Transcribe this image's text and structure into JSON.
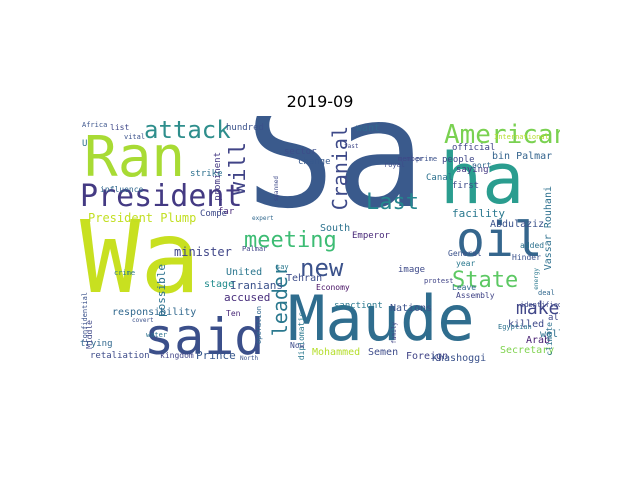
{
  "title": "2019-09",
  "words": [
    {
      "text": "Sâ",
      "color": "#3a5a8c"
    },
    {
      "text": "Wa",
      "color": "#c8e020"
    },
    {
      "text": "Ran",
      "color": "#a8db34"
    },
    {
      "text": "ha",
      "color": "#2a9d8f"
    },
    {
      "text": "Maude",
      "color": "#2f6d8e"
    },
    {
      "text": "said",
      "color": "#3b4f8a"
    },
    {
      "text": "oil",
      "color": "#35668d"
    },
    {
      "text": "President",
      "color": "#443a83"
    },
    {
      "text": "American",
      "color": "#7ad151"
    },
    {
      "text": "attack",
      "color": "#2e8e8c"
    },
    {
      "text": "meeting",
      "color": "#3dbc74"
    },
    {
      "text": "State",
      "color": "#5cc863"
    },
    {
      "text": "new",
      "color": "#3b528b"
    },
    {
      "text": "leader",
      "color": "#2a788e"
    },
    {
      "text": "will",
      "color": "#414487"
    },
    {
      "text": "Cranial",
      "color": "#3e4a89"
    },
    {
      "text": "Last",
      "color": "#24878e"
    },
    {
      "text": "make",
      "color": "#404688"
    },
    {
      "text": "President Plump",
      "color": "#c2df23"
    },
    {
      "text": "United",
      "color": "#2a768e"
    },
    {
      "text": "Iranians",
      "color": "#3b528b"
    },
    {
      "text": "minister",
      "color": "#404688"
    },
    {
      "text": "accused",
      "color": "#472d7b"
    },
    {
      "text": "possible",
      "color": "#2c718e"
    },
    {
      "text": "stage",
      "color": "#228c8d"
    },
    {
      "text": "responsibility",
      "color": "#31688e"
    },
    {
      "text": "Prince",
      "color": "#38588c"
    },
    {
      "text": "kingdom",
      "color": "#414487"
    },
    {
      "text": "retaliation",
      "color": "#3e4c8a"
    },
    {
      "text": "trying",
      "color": "#31688e"
    },
    {
      "text": "Middle",
      "color": "#3f4788"
    },
    {
      "text": "Tehran",
      "color": "#3d4d8a"
    },
    {
      "text": "Economy",
      "color": "#471164"
    },
    {
      "text": "South",
      "color": "#2c728e"
    },
    {
      "text": "Emperor",
      "color": "#482878"
    },
    {
      "text": "sanctiont",
      "color": "#2a788e"
    },
    {
      "text": "Nations",
      "color": "#3b528b"
    },
    {
      "text": "Foreign",
      "color": "#414487"
    },
    {
      "text": "Mohammed",
      "color": "#b5de2b"
    },
    {
      "text": "Semen",
      "color": "#3e4c8a"
    },
    {
      "text": "Khashoggi",
      "color": "#3b528b"
    },
    {
      "text": "Secretary",
      "color": "#7fd34e"
    },
    {
      "text": "killed",
      "color": "#3e4989"
    },
    {
      "text": "Arab",
      "color": "#482173"
    },
    {
      "text": "well",
      "color": "#2e6f8e"
    },
    {
      "text": "ally",
      "color": "#3f4889"
    },
    {
      "text": "climate",
      "color": "#2c718e"
    },
    {
      "text": "Vassar Rouhani",
      "color": "#2d708e"
    },
    {
      "text": "facility",
      "color": "#2a788e"
    },
    {
      "text": "Abdulaziz",
      "color": "#3b528b"
    },
    {
      "text": "bin Palmar",
      "color": "#33638d"
    },
    {
      "text": "want",
      "color": "#31688e"
    },
    {
      "text": "sector",
      "color": "#3d4e8a"
    },
    {
      "text": "change",
      "color": "#38598c"
    },
    {
      "text": "prominent",
      "color": "#443983"
    },
    {
      "text": "strike",
      "color": "#2d708e"
    },
    {
      "text": "influence",
      "color": "#31688e"
    },
    {
      "text": "far",
      "color": "#482878"
    },
    {
      "text": "Compe",
      "color": "#3e4a89"
    },
    {
      "text": "hundred",
      "color": "#3b528b"
    },
    {
      "text": "list",
      "color": "#3f4788"
    },
    {
      "text": "U",
      "color": "#2c718e"
    },
    {
      "text": "Africa",
      "color": "#3a538b"
    },
    {
      "text": "vital",
      "color": "#3b528b"
    },
    {
      "text": "official",
      "color": "#414487"
    },
    {
      "text": "people",
      "color": "#3f4788"
    },
    {
      "text": "saying",
      "color": "#443983"
    },
    {
      "text": "Canal",
      "color": "#2c718e"
    },
    {
      "text": "first",
      "color": "#3e4c8a"
    },
    {
      "text": "year",
      "color": "#2a788e"
    },
    {
      "text": "General",
      "color": "#3b528b"
    },
    {
      "text": "image",
      "color": "#3e4a89"
    },
    {
      "text": "Leave",
      "color": "#31688e"
    },
    {
      "text": "Assembly",
      "color": "#414487"
    },
    {
      "text": "added",
      "color": "#2c718e"
    },
    {
      "text": "Hinder",
      "color": "#3b528b"
    },
    {
      "text": "Ten",
      "color": "#482878"
    },
    {
      "text": "diplomatic",
      "color": "#2a788e"
    },
    {
      "text": "Now",
      "color": "#3e4c8a"
    },
    {
      "text": "port",
      "color": "#31688e"
    },
    {
      "text": "member",
      "color": "#3f4788"
    },
    {
      "text": "prime",
      "color": "#3b528b"
    },
    {
      "text": "say",
      "color": "#2a788e"
    },
    {
      "text": "deal",
      "color": "#31688e"
    },
    {
      "text": "identified",
      "color": "#3e4a89"
    },
    {
      "text": "protest",
      "color": "#414487"
    },
    {
      "text": "International",
      "color": "#b5de2b"
    },
    {
      "text": "Egyptian",
      "color": "#2c718e"
    },
    {
      "text": "confidential",
      "color": "#3b528b"
    },
    {
      "text": "operation",
      "color": "#31688e"
    },
    {
      "text": "royal",
      "color": "#3e4c8a"
    },
    {
      "text": "crime",
      "color": "#2a788e"
    },
    {
      "text": "Palmar",
      "color": "#414487"
    },
    {
      "text": "North",
      "color": "#3b528b"
    },
    {
      "text": "water",
      "color": "#2c718e"
    },
    {
      "text": "expert",
      "color": "#31688e"
    },
    {
      "text": "spanned",
      "color": "#3e4a89"
    },
    {
      "text": "covert",
      "color": "#3b528b"
    },
    {
      "text": "energy",
      "color": "#2a788e"
    },
    {
      "text": "family",
      "color": "#414487"
    },
    {
      "text": "fast",
      "color": "#3f4788"
    }
  ]
}
